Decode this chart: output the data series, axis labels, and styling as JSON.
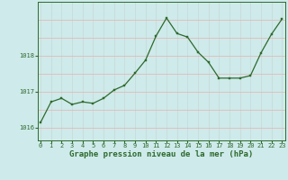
{
  "x": [
    0,
    1,
    2,
    3,
    4,
    5,
    6,
    7,
    8,
    9,
    10,
    11,
    12,
    13,
    14,
    15,
    16,
    17,
    18,
    19,
    20,
    21,
    22,
    23
  ],
  "y": [
    1016.15,
    1016.72,
    1016.82,
    1016.65,
    1016.72,
    1016.68,
    1016.82,
    1017.05,
    1017.18,
    1017.52,
    1017.88,
    1018.55,
    1019.05,
    1018.62,
    1018.52,
    1018.1,
    1017.82,
    1017.38,
    1017.38,
    1017.38,
    1017.45,
    1018.08,
    1018.6,
    1019.02
  ],
  "line_color": "#2d6a2d",
  "marker_color": "#2d6a2d",
  "bg_color": "#ceeaea",
  "grid_color_h": "#e8b0b0",
  "grid_color_v": "#c8d8d8",
  "xlabel": "Graphe pression niveau de la mer (hPa)",
  "xlabel_color": "#2d6a2d",
  "ylabel_ticks": [
    1016,
    1017,
    1018
  ],
  "ylim": [
    1015.65,
    1019.5
  ],
  "xlim": [
    -0.3,
    23.3
  ],
  "xtick_labels": [
    "0",
    "1",
    "2",
    "3",
    "4",
    "5",
    "6",
    "7",
    "8",
    "9",
    "10",
    "11",
    "12",
    "13",
    "14",
    "15",
    "16",
    "17",
    "18",
    "19",
    "20",
    "21",
    "22",
    "23"
  ],
  "tick_fontsize": 5.0,
  "xlabel_fontsize": 6.5,
  "marker_size": 2.0,
  "line_width": 0.9
}
